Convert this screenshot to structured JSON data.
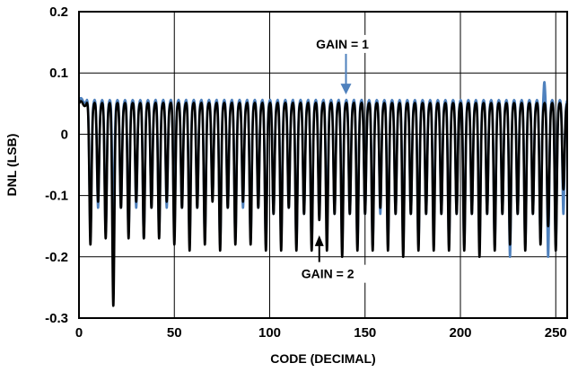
{
  "chart_data": {
    "type": "line",
    "title": "",
    "xlabel": "CODE (DECIMAL)",
    "ylabel": "DNL (LSB)",
    "xlim": [
      0,
      256
    ],
    "ylim": [
      -0.3,
      0.2
    ],
    "grid": true,
    "x_ticks": [
      0,
      50,
      100,
      150,
      200,
      250
    ],
    "y_ticks": [
      0.2,
      0.1,
      0,
      -0.1,
      -0.2,
      -0.3
    ],
    "x_tick_labels": [
      "0",
      "50",
      "100",
      "150",
      "200",
      "250"
    ],
    "y_tick_labels": [
      "0.2",
      "0.1",
      "0",
      "-0.1",
      "-0.2",
      "-0.3"
    ],
    "series": [
      {
        "name": "GAIN = 2",
        "color": "#000000",
        "baseline": 0.05,
        "period": 4,
        "notch_codes": [
          6,
          10,
          14,
          18,
          22,
          26,
          30,
          34,
          38,
          42,
          46,
          50,
          54,
          58,
          62,
          66,
          70,
          74,
          78,
          82,
          86,
          90,
          94,
          98,
          102,
          106,
          110,
          114,
          118,
          122,
          126,
          130,
          134,
          138,
          142,
          146,
          150,
          154,
          158,
          162,
          166,
          170,
          174,
          178,
          182,
          186,
          190,
          194,
          198,
          202,
          206,
          210,
          214,
          218,
          222,
          226,
          230,
          234,
          238,
          242,
          246,
          250,
          254
        ],
        "notch_values": [
          -0.18,
          -0.11,
          -0.17,
          -0.28,
          -0.12,
          -0.17,
          -0.11,
          -0.17,
          -0.12,
          -0.17,
          -0.11,
          -0.18,
          -0.12,
          -0.19,
          -0.12,
          -0.18,
          -0.11,
          -0.19,
          -0.12,
          -0.18,
          -0.11,
          -0.18,
          -0.12,
          -0.19,
          -0.13,
          -0.19,
          -0.12,
          -0.19,
          -0.13,
          -0.19,
          -0.14,
          -0.19,
          -0.13,
          -0.2,
          -0.13,
          -0.19,
          -0.13,
          -0.19,
          -0.12,
          -0.19,
          -0.13,
          -0.2,
          -0.13,
          -0.19,
          -0.13,
          -0.19,
          -0.13,
          -0.19,
          -0.13,
          -0.19,
          -0.13,
          -0.2,
          -0.13,
          -0.19,
          -0.13,
          -0.18,
          -0.13,
          -0.19,
          -0.13,
          -0.18,
          -0.21,
          -0.19,
          -0.13
        ],
        "peak_codes": [
          246,
          254
        ],
        "peak_values": [
          0.11,
          0.09
        ]
      },
      {
        "name": "GAIN = 1",
        "color": "#4f81bd",
        "baseline": 0.055,
        "period": 4,
        "notch_codes": [
          6,
          10,
          14,
          18,
          22,
          26,
          30,
          34,
          38,
          42,
          46,
          50,
          54,
          58,
          62,
          66,
          70,
          74,
          78,
          82,
          86,
          90,
          94,
          98,
          102,
          106,
          110,
          114,
          118,
          122,
          126,
          130,
          134,
          138,
          142,
          146,
          150,
          154,
          158,
          162,
          166,
          170,
          174,
          178,
          182,
          186,
          190,
          194,
          198,
          202,
          206,
          210,
          214,
          218,
          222,
          226,
          230,
          234,
          238,
          242,
          246,
          250,
          254
        ],
        "notch_values": [
          -0.16,
          -0.12,
          -0.16,
          -0.15,
          -0.12,
          -0.16,
          -0.12,
          -0.17,
          -0.12,
          -0.16,
          -0.12,
          -0.16,
          -0.12,
          -0.17,
          -0.12,
          -0.17,
          -0.12,
          -0.18,
          -0.12,
          -0.17,
          -0.12,
          -0.17,
          -0.12,
          -0.18,
          -0.13,
          -0.17,
          -0.12,
          -0.18,
          -0.13,
          -0.18,
          -0.13,
          -0.17,
          -0.13,
          -0.18,
          -0.13,
          -0.18,
          -0.13,
          -0.18,
          -0.13,
          -0.18,
          -0.13,
          -0.18,
          -0.13,
          -0.18,
          -0.13,
          -0.18,
          -0.13,
          -0.18,
          -0.13,
          -0.18,
          -0.13,
          -0.18,
          -0.13,
          -0.18,
          -0.13,
          -0.2,
          -0.13,
          -0.18,
          -0.13,
          -0.17,
          -0.2,
          -0.18,
          -0.13
        ],
        "peak_codes": [
          70,
          130,
          186,
          244
        ],
        "peak_values": [
          0.075,
          0.085,
          0.1,
          0.085
        ]
      }
    ],
    "annotations": [
      {
        "text": "GAIN = 1",
        "x": 140,
        "y": 0.14,
        "arrow_to": [
          140,
          0.065
        ]
      },
      {
        "text": "GAIN = 2",
        "x": 126,
        "y": -0.235,
        "arrow_to": [
          126,
          -0.165
        ]
      }
    ]
  }
}
